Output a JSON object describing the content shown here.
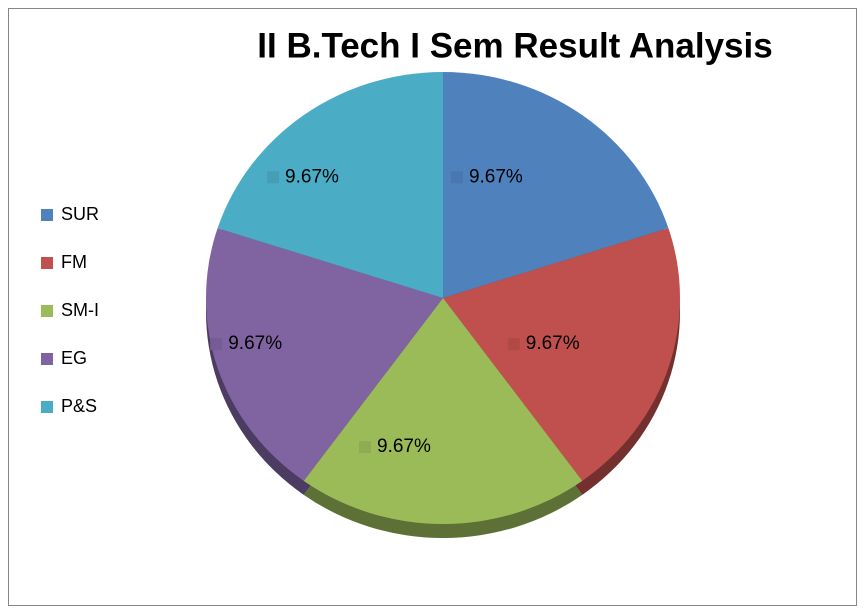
{
  "chart_data": {
    "type": "pie",
    "title": "II B.Tech I Sem Result Analysis",
    "categories": [
      "SUR",
      "FM",
      "SM-I",
      "EG",
      "P&S"
    ],
    "values": [
      9.67,
      9.67,
      9.67,
      9.67,
      9.67
    ],
    "value_labels": [
      "9.67%",
      "9.67%",
      "9.67%",
      "9.67%",
      "9.67%"
    ],
    "colors": [
      "#4f81bd",
      "#c0504d",
      "#9bbb59",
      "#8064a2",
      "#4bacc6"
    ],
    "legend": "left"
  }
}
